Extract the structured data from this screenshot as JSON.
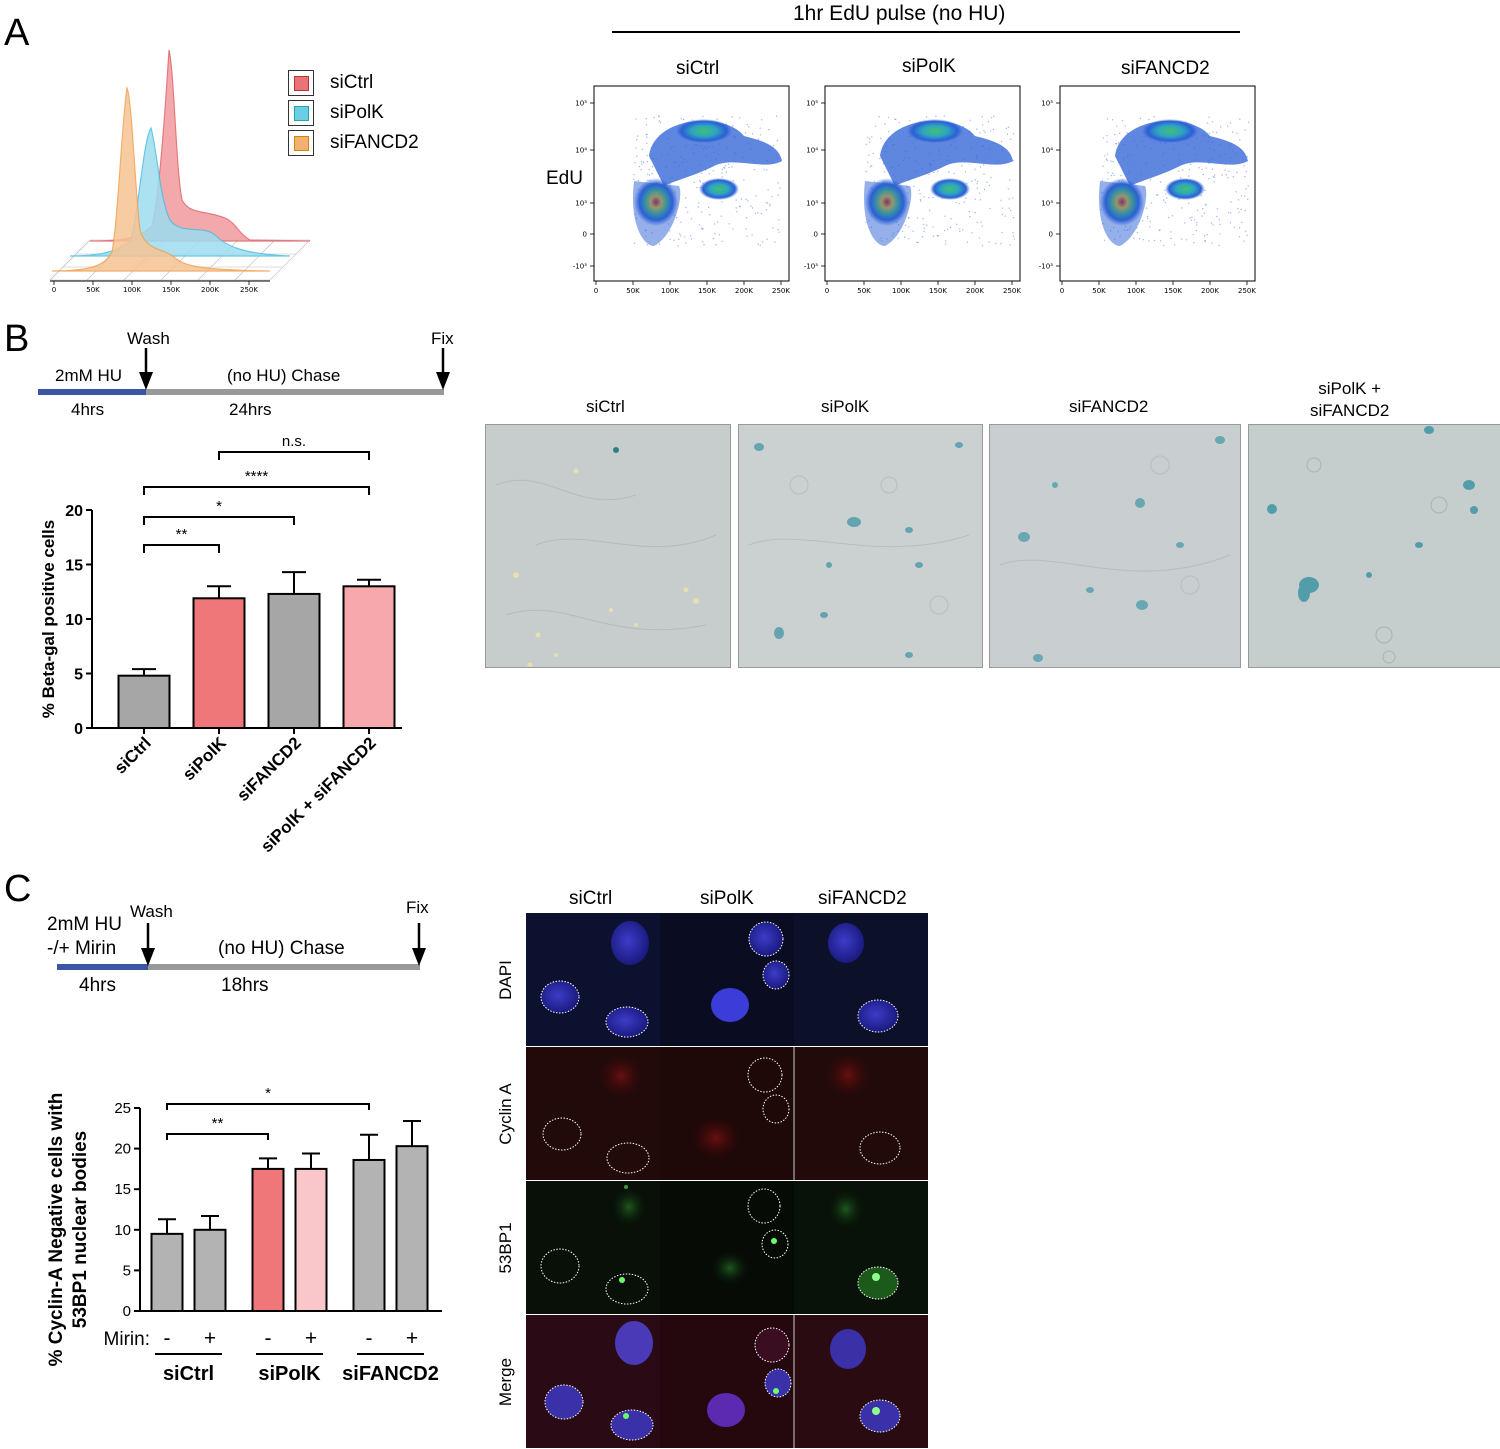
{
  "panel_labels": {
    "a": "A",
    "b": "B",
    "c": "C"
  },
  "panel_a": {
    "histogram": {
      "legend": [
        "siCtrl",
        "siPolK",
        "siFANCD2"
      ],
      "legend_colors": [
        "#e8747a",
        "#6ccde8",
        "#f2b072"
      ],
      "x_ticks": [
        "0",
        "50K",
        "100K",
        "150K",
        "200K",
        "250K"
      ]
    },
    "flow_header": "1hr EdU pulse (no HU)",
    "flow_ylabel": "EdU",
    "flow_plots": [
      {
        "title": "siCtrl"
      },
      {
        "title": "siPolK"
      },
      {
        "title": "siFANCD2"
      }
    ],
    "flow_y_ticks": [
      "10⁵",
      "10⁴",
      "10³",
      "0",
      "-10³"
    ],
    "flow_x_ticks": [
      "0",
      "50K",
      "100K",
      "150K",
      "200K",
      "250K"
    ]
  },
  "panel_b": {
    "timeline": {
      "wash": "Wash",
      "fix": "Fix",
      "treatment": "2mM HU",
      "treatment_time": "4hrs",
      "chase": "(no HU) Chase",
      "chase_time": "24hrs"
    },
    "images": [
      {
        "title": "siCtrl"
      },
      {
        "title": "siPolK"
      },
      {
        "title": "siFANCD2"
      },
      {
        "title": "siPolK +\nsiFANCD2"
      }
    ]
  },
  "panel_c": {
    "timeline": {
      "wash": "Wash",
      "fix": "Fix",
      "treatment": "2mM HU",
      "treatment_2": "-/+ Mirin",
      "treatment_time": "4hrs",
      "chase": "(no HU) Chase",
      "chase_time": "18hrs"
    },
    "micro_columns": [
      "siCtrl",
      "siPolK",
      "siFANCD2"
    ],
    "micro_rows": [
      "DAPI",
      "Cyclin A",
      "53BP1",
      "Merge"
    ]
  },
  "chart_data": [
    {
      "type": "bar",
      "categories": [
        "siCtrl",
        "siPolK",
        "siFANCD2",
        "siPolK + siFANCD2"
      ],
      "values": [
        4.8,
        11.9,
        12.3,
        13.0
      ],
      "errors": [
        0.6,
        1.1,
        2.0,
        0.6
      ],
      "colors": [
        "#a6a6a6",
        "#ef7679",
        "#a6a6a6",
        "#f6a8ad"
      ],
      "ylabel": "% Beta-gal positive cells",
      "ylim": [
        0,
        20
      ],
      "yticks": [
        0,
        5,
        10,
        15,
        20
      ],
      "significance": [
        {
          "from": 0,
          "to": 1,
          "label": "**"
        },
        {
          "from": 0,
          "to": 2,
          "label": "*"
        },
        {
          "from": 0,
          "to": 3,
          "label": "****"
        },
        {
          "from": 1,
          "to": 3,
          "label": "n.s."
        }
      ]
    },
    {
      "type": "bar",
      "groups": [
        "siCtrl",
        "siPolK",
        "siFANCD2"
      ],
      "mirin_label": "Mirin:",
      "mirin_values": [
        "-",
        "+"
      ],
      "values": [
        9.5,
        10.0,
        17.5,
        17.5,
        18.6,
        20.3
      ],
      "errors": [
        1.8,
        1.7,
        1.3,
        1.9,
        3.1,
        3.1
      ],
      "colors": [
        "#b3b3b3",
        "#b3b3b3",
        "#ef7679",
        "#f9c6ca",
        "#b3b3b3",
        "#b3b3b3"
      ],
      "ylabel": "% Cyclin-A Negative cells with\n53BP1 nuclear bodies",
      "ylim": [
        0,
        25
      ],
      "yticks": [
        0,
        5,
        10,
        15,
        20,
        25
      ],
      "significance": [
        {
          "from": 0,
          "to": 2,
          "label": "**"
        },
        {
          "from": 0,
          "to": 4,
          "label": "*"
        }
      ]
    }
  ]
}
